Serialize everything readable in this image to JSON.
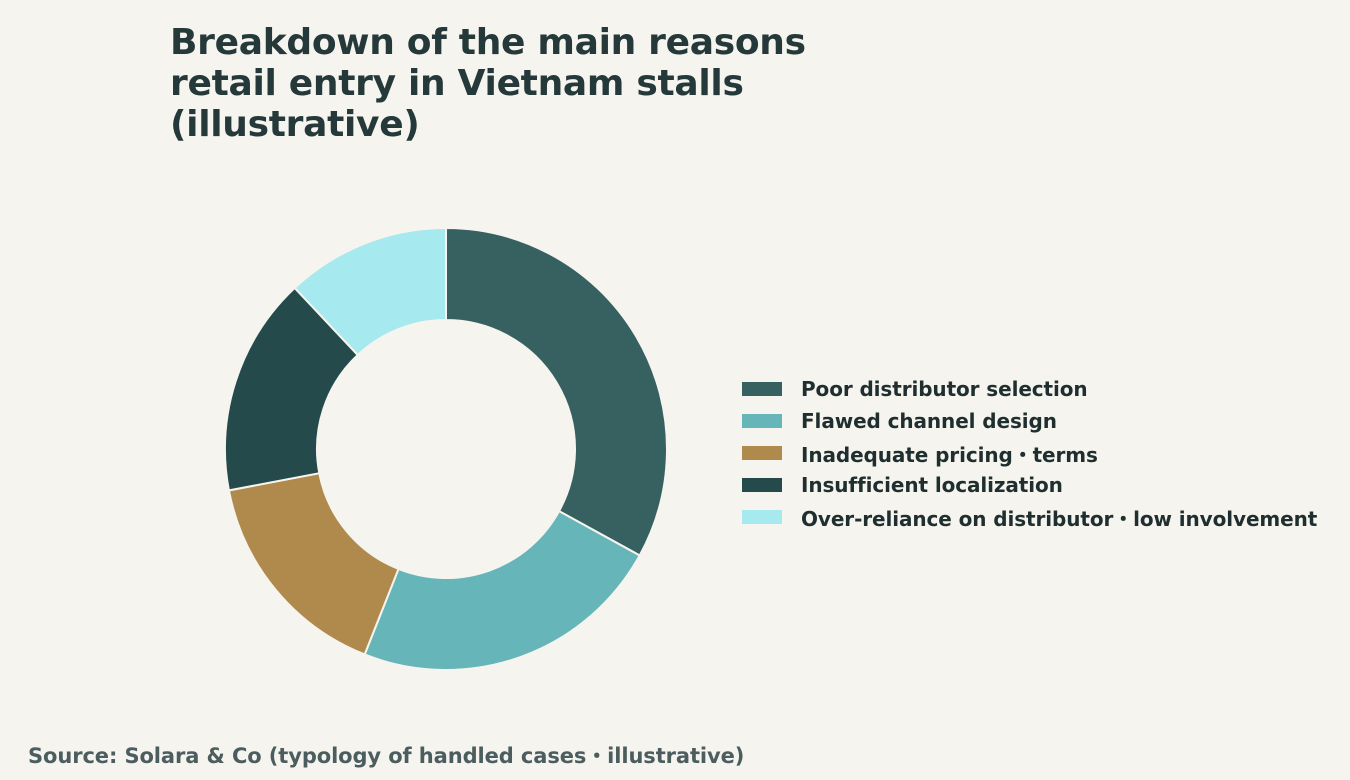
{
  "chart_data": {
    "type": "pie",
    "donut": true,
    "title_lines": [
      "Breakdown of the main reasons",
      "retail entry in Vietnam stalls",
      "(illustrative)"
    ],
    "categories": [
      "Poor distributor selection",
      "Flawed channel design",
      "Inadequate pricing・terms",
      "Insufficient localization",
      "Over-reliance on distributor・low involvement"
    ],
    "values": [
      33,
      23,
      16,
      16,
      12
    ],
    "colors": [
      "#376061",
      "#66b5b9",
      "#b08a4d",
      "#244a4b",
      "#a6e9ee"
    ],
    "legend_position": "right",
    "source": "Source: Solara & Co (typology of handled cases・illustrative)"
  }
}
